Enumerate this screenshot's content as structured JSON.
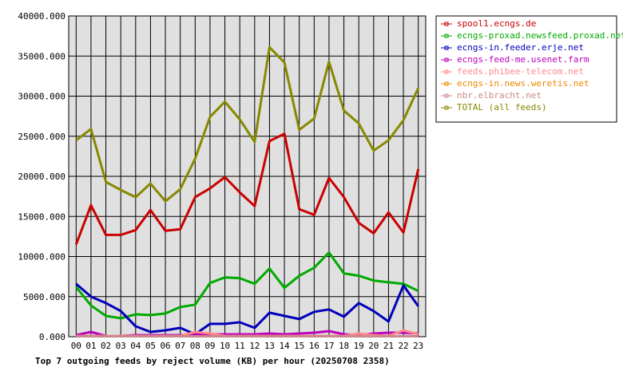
{
  "chart_data": {
    "type": "line",
    "caption": "Top 7 outgoing feeds by reject volume (KB) per hour (20250708 2358)",
    "categories": [
      "00",
      "01",
      "02",
      "03",
      "04",
      "05",
      "06",
      "07",
      "08",
      "09",
      "10",
      "11",
      "12",
      "13",
      "14",
      "15",
      "16",
      "17",
      "18",
      "19",
      "20",
      "21",
      "22",
      "23"
    ],
    "ylim": [
      0,
      40000
    ],
    "yticks": [
      "0.000",
      "5000.000",
      "10000.000",
      "15000.000",
      "20000.000",
      "25000.000",
      "30000.000",
      "35000.000",
      "40000.000"
    ],
    "ytick_values": [
      0,
      5000,
      10000,
      15000,
      20000,
      25000,
      30000,
      35000,
      40000
    ],
    "grid": true,
    "legend_position": "right",
    "series": [
      {
        "name": "spool1.ecngs.de",
        "color": "#cc0000",
        "values": [
          11500,
          16400,
          12700,
          12700,
          13300,
          15800,
          13200,
          13400,
          17400,
          18500,
          19900,
          18000,
          16300,
          24400,
          25300,
          15900,
          15200,
          19800,
          17400,
          14200,
          12900,
          15500,
          13000,
          20900
        ]
      },
      {
        "name": "ecngs-proxad.newsfeed.proxad.net",
        "color": "#00aa00",
        "values": [
          6200,
          3900,
          2600,
          2300,
          2800,
          2700,
          2900,
          3700,
          4000,
          6700,
          7400,
          7300,
          6600,
          8500,
          6100,
          7600,
          8600,
          10500,
          7900,
          7600,
          7000,
          6800,
          6600,
          5700
        ]
      },
      {
        "name": "ecngs-in.feeder.erje.net",
        "color": "#0000bb",
        "values": [
          6600,
          5000,
          4200,
          3200,
          1300,
          600,
          800,
          1100,
          300,
          1600,
          1600,
          1800,
          1100,
          3000,
          2600,
          2200,
          3100,
          3400,
          2500,
          4200,
          3200,
          1900,
          6400,
          3800
        ]
      },
      {
        "name": "ecngs-feed-me.usenet.farm",
        "color": "#bb00bb",
        "values": [
          200,
          600,
          100,
          100,
          200,
          200,
          200,
          200,
          300,
          300,
          300,
          300,
          300,
          400,
          300,
          400,
          500,
          700,
          300,
          200,
          400,
          500,
          500,
          400
        ]
      },
      {
        "name": "feeds.phibee-telecom.net",
        "color": "#ff8888",
        "values": [
          100,
          100,
          100,
          100,
          100,
          100,
          100,
          100,
          600,
          400,
          100,
          100,
          100,
          100,
          100,
          100,
          100,
          100,
          100,
          400,
          200,
          100,
          800,
          300
        ]
      },
      {
        "name": "ecngs-in.news.weretis.net",
        "color": "#ee8800",
        "values": [
          50,
          50,
          50,
          50,
          50,
          50,
          50,
          50,
          50,
          50,
          50,
          50,
          50,
          50,
          50,
          50,
          50,
          50,
          50,
          50,
          50,
          50,
          50,
          50
        ]
      },
      {
        "name": "nbr.elbracht.net",
        "color": "#cc8888",
        "values": [
          50,
          50,
          50,
          50,
          50,
          50,
          50,
          50,
          50,
          50,
          50,
          50,
          50,
          50,
          50,
          50,
          50,
          50,
          50,
          50,
          50,
          50,
          50,
          50
        ]
      },
      {
        "name": "TOTAL (all feeds)",
        "color": "#888800",
        "values": [
          24500,
          25900,
          19300,
          18300,
          17400,
          19100,
          16900,
          18400,
          22200,
          27400,
          29300,
          27100,
          24300,
          36100,
          34200,
          25800,
          27200,
          34300,
          28200,
          26600,
          23200,
          24500,
          27000,
          31000
        ]
      }
    ]
  }
}
